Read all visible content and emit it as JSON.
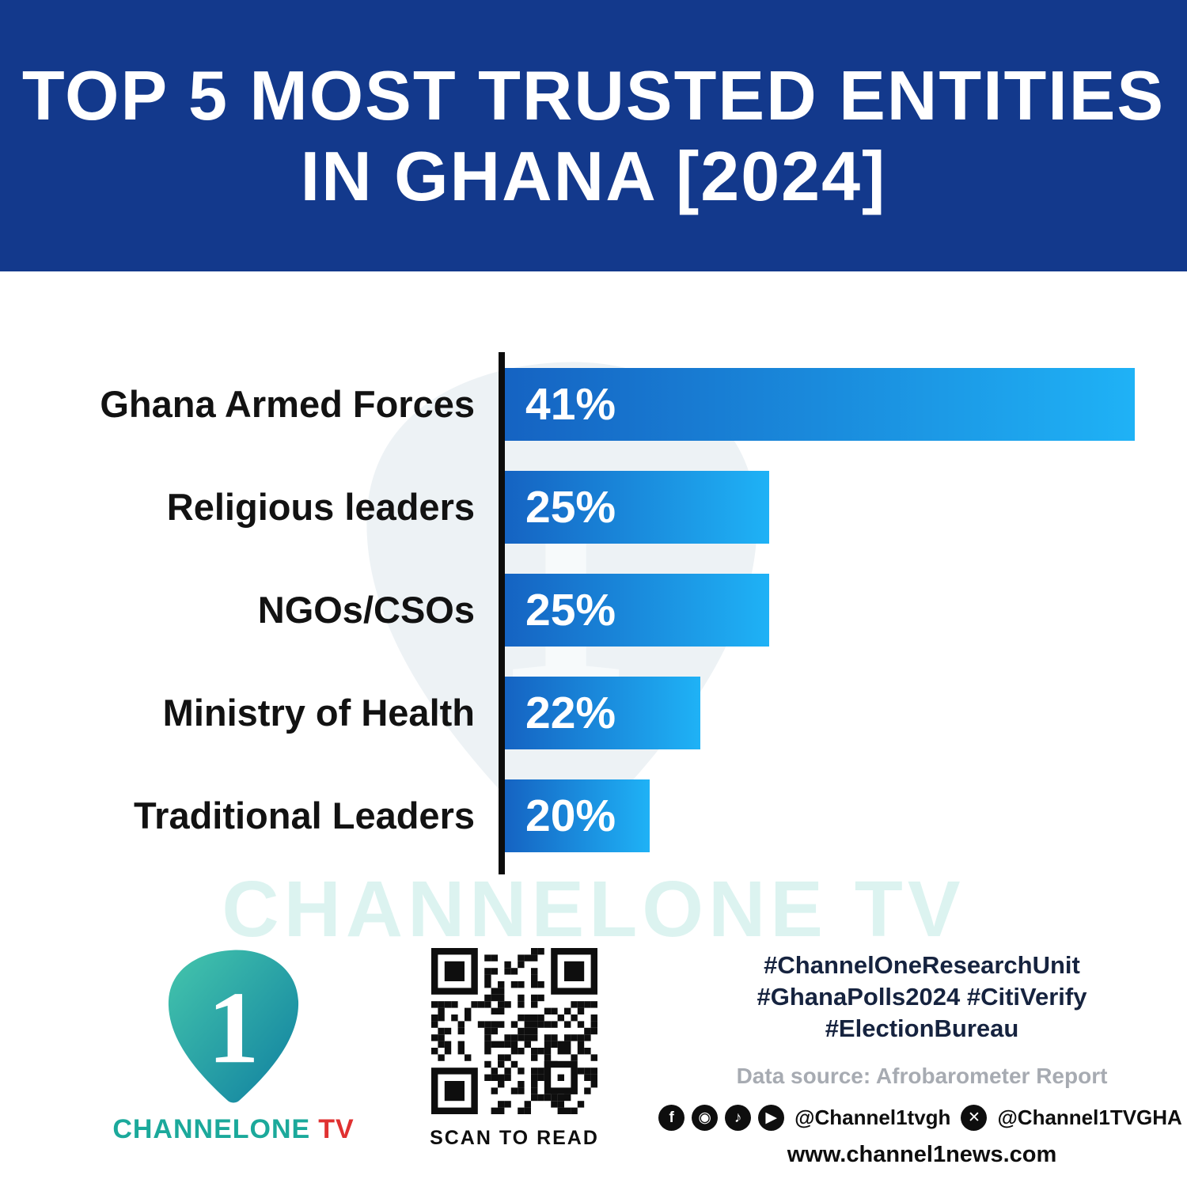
{
  "header": {
    "title_line1": "TOP 5 MOST TRUSTED ENTITIES",
    "title_line2": "IN GHANA [2024]"
  },
  "chart_data": {
    "type": "bar",
    "orientation": "horizontal",
    "title": "Top 5 Most Trusted Entities in Ghana [2024]",
    "categories": [
      "Ghana Armed Forces",
      "Religious leaders",
      "NGOs/CSOs",
      "Ministry of Health",
      "Traditional Leaders"
    ],
    "values": [
      41,
      25,
      25,
      22,
      20
    ],
    "value_labels": [
      "41%",
      "25%",
      "25%",
      "22%",
      "20%"
    ],
    "bar_width_pct": [
      100,
      42,
      42,
      31,
      23
    ],
    "bar_gradient": [
      "#1563c2",
      "#1fb2f6"
    ],
    "xlabel": "",
    "ylabel": "",
    "legend": "none",
    "grid": "off"
  },
  "watermark": {
    "text": "CHANNELONE TV"
  },
  "footer": {
    "logo_brand": "CHANNELONE",
    "logo_suffix": "TV",
    "logo_numeral": "1",
    "qr_caption": "SCAN TO READ",
    "hashtags": [
      "#ChannelOneResearchUnit",
      "#GhanaPolls2024 #CitiVerify",
      "#ElectionBureau"
    ],
    "source": "Data source: Afrobarometer Report",
    "icons": [
      {
        "name": "facebook-icon",
        "glyph": "f"
      },
      {
        "name": "instagram-icon",
        "glyph": "◉"
      },
      {
        "name": "tiktok-icon",
        "glyph": "♪"
      },
      {
        "name": "youtube-icon",
        "glyph": "▶"
      },
      {
        "name": "x-icon",
        "glyph": "✕"
      }
    ],
    "social_handle_1": "@Channel1tvgh",
    "social_handle_2": "@Channel1TVGHA",
    "website": "www.channel1news.com"
  },
  "colors": {
    "header_blue": "#13398c",
    "bar_start": "#1563c2",
    "bar_end": "#1fb2f6",
    "axis_black": "#0d0d0d",
    "brand_teal": "#1ba99b",
    "brand_red": "#e03131",
    "hashtag_navy": "#16233f",
    "source_gray": "#a7abb2"
  }
}
